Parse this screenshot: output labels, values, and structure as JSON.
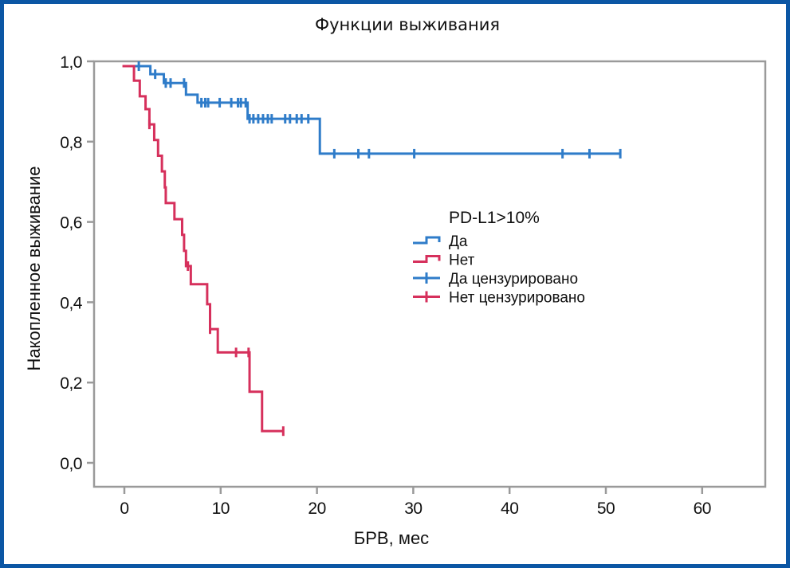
{
  "chart_data": {
    "type": "line",
    "subtype": "kaplan-meier-step",
    "title": "Функции выживания",
    "xlabel": "БРВ, мес",
    "ylabel": "Накопленное выживание",
    "xlim": [
      -3,
      67
    ],
    "ylim": [
      -0.06,
      1.0
    ],
    "xticks": [
      0,
      10,
      20,
      30,
      40,
      50,
      60
    ],
    "xtick_labels": [
      "0",
      "10",
      "20",
      "30",
      "40",
      "50",
      "60"
    ],
    "yticks": [
      0.0,
      0.2,
      0.4,
      0.6,
      0.8,
      1.0
    ],
    "ytick_labels": [
      "0,0",
      "0,2",
      "0,4",
      "0,6",
      "0,8",
      "1,0"
    ],
    "grid": false,
    "legend": {
      "title": "PD-L1>10%",
      "placement": "center-right",
      "entries": [
        {
          "label": "Да",
          "kind": "step",
          "series": "yes"
        },
        {
          "label": "Нет",
          "kind": "step",
          "series": "no"
        },
        {
          "label": "Да цензурировано",
          "kind": "censor",
          "series": "yes"
        },
        {
          "label": "Нет цензурировано",
          "kind": "censor",
          "series": "no"
        }
      ]
    },
    "series": [
      {
        "id": "yes",
        "name": "Да",
        "color": "#2f7cc9",
        "start": 0,
        "end": 51.5,
        "steps": [
          {
            "t": 0,
            "s": 0.988
          },
          {
            "t": 2.7,
            "s": 0.968
          },
          {
            "t": 4.1,
            "s": 0.946
          },
          {
            "t": 6.4,
            "s": 0.917
          },
          {
            "t": 7.6,
            "s": 0.897
          },
          {
            "t": 12.8,
            "s": 0.857
          },
          {
            "t": 20.3,
            "s": 0.77
          }
        ],
        "censored": [
          1.5,
          3.2,
          4.3,
          4.8,
          6.2,
          8.0,
          8.4,
          8.7,
          9.9,
          11.1,
          11.8,
          12.1,
          12.6,
          13.0,
          13.4,
          13.9,
          14.4,
          14.9,
          15.3,
          16.7,
          17.2,
          17.9,
          18.4,
          19.1,
          21.8,
          24.3,
          25.4,
          30.1,
          45.5,
          48.3,
          51.5
        ]
      },
      {
        "id": "no",
        "name": "Нет",
        "color": "#d6305c",
        "start": -0.2,
        "end": 16.5,
        "steps": [
          {
            "t": -0.2,
            "s": 0.988
          },
          {
            "t": 1.0,
            "s": 0.952
          },
          {
            "t": 1.6,
            "s": 0.913
          },
          {
            "t": 2.2,
            "s": 0.881
          },
          {
            "t": 2.6,
            "s": 0.843
          },
          {
            "t": 3.1,
            "s": 0.804
          },
          {
            "t": 3.5,
            "s": 0.765
          },
          {
            "t": 3.9,
            "s": 0.726
          },
          {
            "t": 4.2,
            "s": 0.686
          },
          {
            "t": 4.3,
            "s": 0.647
          },
          {
            "t": 5.2,
            "s": 0.607
          },
          {
            "t": 6.0,
            "s": 0.568
          },
          {
            "t": 6.2,
            "s": 0.528
          },
          {
            "t": 6.4,
            "s": 0.49
          },
          {
            "t": 6.9,
            "s": 0.445
          },
          {
            "t": 8.6,
            "s": 0.395
          },
          {
            "t": 8.9,
            "s": 0.333
          },
          {
            "t": 9.7,
            "s": 0.275
          },
          {
            "t": 13.0,
            "s": 0.177
          },
          {
            "t": 14.3,
            "s": 0.079
          }
        ],
        "censored": [
          2.6,
          6.6,
          8.9,
          11.6,
          12.9,
          16.5
        ]
      }
    ]
  }
}
